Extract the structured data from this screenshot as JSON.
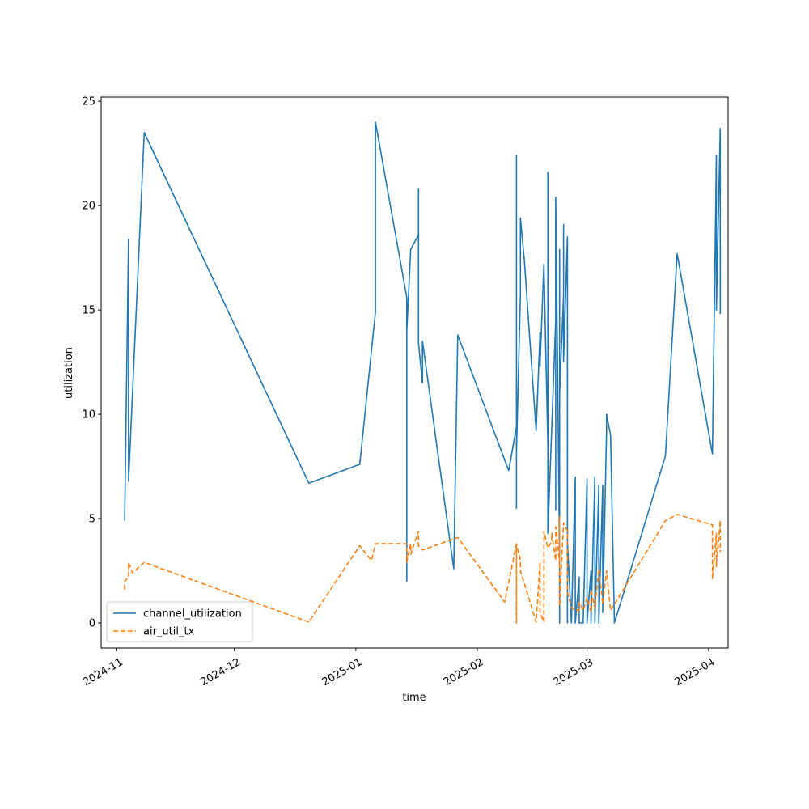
{
  "chart_data": {
    "type": "line",
    "xlabel": "time",
    "ylabel": "utilization",
    "xlim": [
      "2024-10-28",
      "2025-04-06"
    ],
    "ylim": [
      -1.2,
      25.2
    ],
    "x_ticks": [
      "2024-11-01",
      "2024-12-01",
      "2025-01-01",
      "2025-02-01",
      "2025-03-01",
      "2025-04-01"
    ],
    "x_tick_labels": [
      "2024-11",
      "2024-12",
      "2025-01",
      "2025-02",
      "2025-03",
      "2025-04"
    ],
    "y_ticks": [
      0,
      5,
      10,
      15,
      20,
      25
    ],
    "y_tick_labels": [
      "0",
      "5",
      "10",
      "15",
      "20",
      "25"
    ],
    "grid": false,
    "legend_position": "lower-left",
    "series": [
      {
        "name": "channel_utilization",
        "color": "#1f77b4",
        "dash": "solid",
        "points": [
          [
            "2024-11-03",
            4.9
          ],
          [
            "2024-11-04",
            18.4
          ],
          [
            "2024-11-04",
            11.6
          ],
          [
            "2024-11-04",
            14.8
          ],
          [
            "2024-11-04",
            6.8
          ],
          [
            "2024-11-08",
            23.5
          ],
          [
            "2024-12-20",
            6.7
          ],
          [
            "2025-01-02",
            7.6
          ],
          [
            "2025-01-06",
            14.9
          ],
          [
            "2025-01-06",
            24.0
          ],
          [
            "2025-01-14",
            15.6
          ],
          [
            "2025-01-14",
            2.0
          ],
          [
            "2025-01-14",
            14.0
          ],
          [
            "2025-01-15",
            17.9
          ],
          [
            "2025-01-17",
            18.6
          ],
          [
            "2025-01-17",
            20.8
          ],
          [
            "2025-01-17",
            13.4
          ],
          [
            "2025-01-18",
            11.5
          ],
          [
            "2025-01-18",
            13.5
          ],
          [
            "2025-01-26",
            2.6
          ],
          [
            "2025-01-27",
            13.8
          ],
          [
            "2025-02-09",
            7.3
          ],
          [
            "2025-02-11",
            9.4
          ],
          [
            "2025-02-11",
            5.5
          ],
          [
            "2025-02-11",
            22.4
          ],
          [
            "2025-02-11",
            8.2
          ],
          [
            "2025-02-12",
            15.8
          ],
          [
            "2025-02-12",
            19.4
          ],
          [
            "2025-02-13",
            17.4
          ],
          [
            "2025-02-16",
            9.2
          ],
          [
            "2025-02-17",
            13.9
          ],
          [
            "2025-02-17",
            12.3
          ],
          [
            "2025-02-18",
            17.2
          ],
          [
            "2025-02-19",
            8.5
          ],
          [
            "2025-02-19",
            21.6
          ],
          [
            "2025-02-19",
            4.3
          ],
          [
            "2025-02-21",
            14.5
          ],
          [
            "2025-02-21",
            5.4
          ],
          [
            "2025-02-21",
            20.4
          ],
          [
            "2025-02-22",
            3.1
          ],
          [
            "2025-02-22",
            17.9
          ],
          [
            "2025-02-22",
            0.0
          ],
          [
            "2025-02-22",
            11.0
          ],
          [
            "2025-02-23",
            15.7
          ],
          [
            "2025-02-23",
            12.5
          ],
          [
            "2025-02-23",
            19.1
          ],
          [
            "2025-02-23",
            12.6
          ],
          [
            "2025-02-24",
            18.5
          ],
          [
            "2025-02-24",
            0.0
          ],
          [
            "2025-02-24",
            3.9
          ],
          [
            "2025-02-25",
            0.0
          ],
          [
            "2025-02-26",
            7.0
          ],
          [
            "2025-02-26",
            0.0
          ],
          [
            "2025-02-27",
            2.2
          ],
          [
            "2025-02-27",
            0.0
          ],
          [
            "2025-02-28",
            0.0
          ],
          [
            "2025-03-01",
            6.9
          ],
          [
            "2025-03-01",
            0.0
          ],
          [
            "2025-03-02",
            2.5
          ],
          [
            "2025-03-02",
            0.0
          ],
          [
            "2025-03-03",
            7.0
          ],
          [
            "2025-03-03",
            0.0
          ],
          [
            "2025-03-04",
            6.6
          ],
          [
            "2025-03-04",
            0.0
          ],
          [
            "2025-03-05",
            6.6
          ],
          [
            "2025-03-05",
            0.5
          ],
          [
            "2025-03-06",
            9.3
          ],
          [
            "2025-03-06",
            10.0
          ],
          [
            "2025-03-07",
            9.0
          ],
          [
            "2025-03-08",
            0.0
          ],
          [
            "2025-03-21",
            8.0
          ],
          [
            "2025-03-24",
            17.7
          ],
          [
            "2025-04-02",
            8.1
          ],
          [
            "2025-04-03",
            22.4
          ],
          [
            "2025-04-03",
            15.0
          ],
          [
            "2025-04-04",
            23.7
          ],
          [
            "2025-04-04",
            14.8
          ]
        ]
      },
      {
        "name": "air_util_tx",
        "color": "#ff7f0e",
        "dash": "dashed",
        "points": [
          [
            "2024-11-03",
            1.6
          ],
          [
            "2024-11-03",
            2.0
          ],
          [
            "2024-11-04",
            2.2
          ],
          [
            "2024-11-04",
            2.9
          ],
          [
            "2024-11-05",
            2.4
          ],
          [
            "2024-11-08",
            2.9
          ],
          [
            "2024-12-20",
            0.05
          ],
          [
            "2025-01-02",
            3.7
          ],
          [
            "2025-01-05",
            3.0
          ],
          [
            "2025-01-06",
            3.8
          ],
          [
            "2025-01-14",
            3.8
          ],
          [
            "2025-01-14",
            2.9
          ],
          [
            "2025-01-15",
            3.8
          ],
          [
            "2025-01-15",
            3.3
          ],
          [
            "2025-01-17",
            4.4
          ],
          [
            "2025-01-17",
            3.7
          ],
          [
            "2025-01-18",
            3.5
          ],
          [
            "2025-01-27",
            4.1
          ],
          [
            "2025-02-08",
            1.0
          ],
          [
            "2025-02-11",
            3.8
          ],
          [
            "2025-02-11",
            0.0
          ],
          [
            "2025-02-11",
            3.8
          ],
          [
            "2025-02-12",
            3.0
          ],
          [
            "2025-02-12",
            2.5
          ],
          [
            "2025-02-16",
            0.05
          ],
          [
            "2025-02-17",
            2.9
          ],
          [
            "2025-02-17",
            0.5
          ],
          [
            "2025-02-18",
            0.05
          ],
          [
            "2025-02-18",
            4.4
          ],
          [
            "2025-02-19",
            3.6
          ],
          [
            "2025-02-20",
            3.9
          ],
          [
            "2025-02-20",
            4.3
          ],
          [
            "2025-02-21",
            3.0
          ],
          [
            "2025-02-21",
            4.6
          ],
          [
            "2025-02-22",
            2.9
          ],
          [
            "2025-02-22",
            5.1
          ],
          [
            "2025-02-22",
            0.8
          ],
          [
            "2025-02-23",
            4.8
          ],
          [
            "2025-02-24",
            4.4
          ],
          [
            "2025-02-24",
            1.5
          ],
          [
            "2025-02-25",
            0.7
          ],
          [
            "2025-02-27",
            0.6
          ],
          [
            "2025-02-27",
            1.0
          ],
          [
            "2025-02-28",
            0.6
          ],
          [
            "2025-03-01",
            1.2
          ],
          [
            "2025-03-02",
            0.5
          ],
          [
            "2025-03-02",
            1.6
          ],
          [
            "2025-03-03",
            0.7
          ],
          [
            "2025-03-04",
            2.6
          ],
          [
            "2025-03-05",
            0.9
          ],
          [
            "2025-03-06",
            2.5
          ],
          [
            "2025-03-07",
            0.6
          ],
          [
            "2025-03-21",
            4.9
          ],
          [
            "2025-03-24",
            5.2
          ],
          [
            "2025-04-02",
            4.7
          ],
          [
            "2025-04-02",
            2.1
          ],
          [
            "2025-04-03",
            4.3
          ],
          [
            "2025-04-03",
            2.7
          ],
          [
            "2025-04-04",
            4.9
          ],
          [
            "2025-04-04",
            3.4
          ]
        ]
      }
    ]
  }
}
